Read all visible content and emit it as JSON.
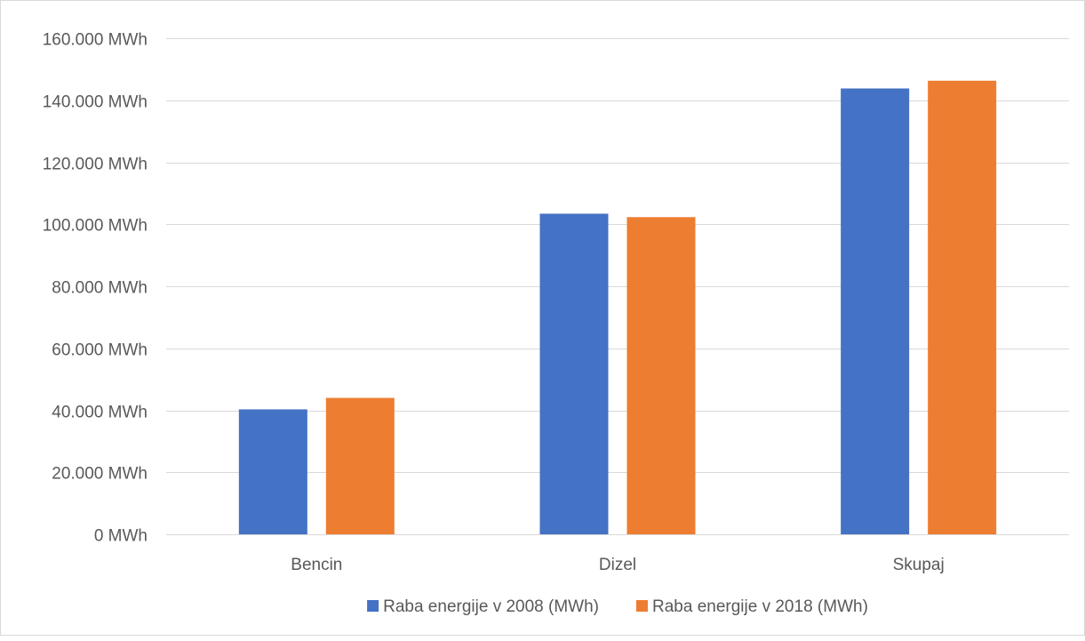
{
  "chart_data": {
    "type": "bar",
    "categories": [
      "Bencin",
      "Dizel",
      "Skupaj"
    ],
    "series": [
      {
        "name": "Raba energije v 2008 (MWh)",
        "color": "#4472C4",
        "values": [
          40300,
          103400,
          143800
        ]
      },
      {
        "name": "Raba energije v 2018 (MWh)",
        "color": "#ED7D31",
        "values": [
          44000,
          102300,
          146300
        ]
      }
    ],
    "ylim": [
      0,
      160000
    ],
    "y_ticks": [
      0,
      20000,
      40000,
      60000,
      80000,
      100000,
      120000,
      140000,
      160000
    ],
    "y_tick_labels": [
      "0 MWh",
      "20.000 MWh",
      "40.000 MWh",
      "60.000 MWh",
      "80.000 MWh",
      "100.000 MWh",
      "120.000 MWh",
      "140.000 MWh",
      "160.000 MWh"
    ],
    "grid": true,
    "legend_position": "bottom",
    "title": "",
    "xlabel": "",
    "ylabel": ""
  }
}
